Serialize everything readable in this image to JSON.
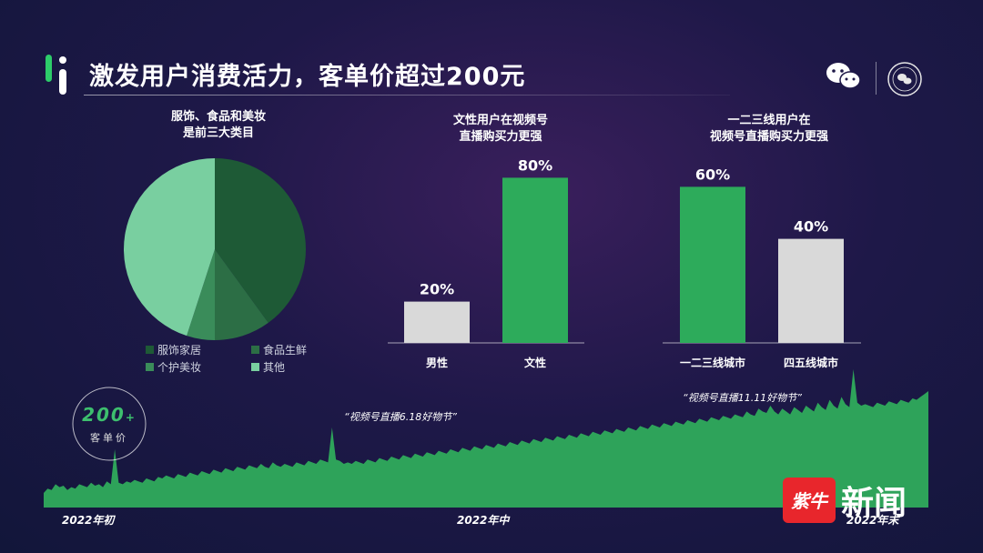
{
  "header": {
    "title": "激发用户消费活力，客单价超过200元"
  },
  "colors": {
    "green_dark": "#1e5a36",
    "green_mid": "#2f7a4b",
    "green_light": "#79cfa0",
    "green_bar": "#2dab5b",
    "gray_bar": "#d9d9d9",
    "area_fill": "#2ea35a"
  },
  "icons": {
    "wechat": "wechat-icon",
    "seal": "seal-icon",
    "logo": "brand-logo-icon"
  },
  "chart_data": [
    {
      "type": "pie",
      "title": "服饰、食品和美妆\n是前三大类目",
      "slices": [
        {
          "name": "服饰家居",
          "value": 40,
          "color": "#1e5a36"
        },
        {
          "name": "食品生鲜",
          "value": 10,
          "color": "#2c6e45"
        },
        {
          "name": "个护美妆",
          "value": 5,
          "color": "#3a8c5a"
        },
        {
          "name": "其他",
          "value": 45,
          "color": "#79cfa0"
        }
      ],
      "legend": [
        "服饰家居",
        "食品生鲜",
        "个护美妆",
        "其他"
      ],
      "legend_placement": "bottom"
    },
    {
      "type": "bar",
      "title": "文性用户在视频号\n直播购买力更强",
      "categories": [
        "男性",
        "文性"
      ],
      "values": [
        20,
        80
      ],
      "value_labels": [
        "20%",
        "80%"
      ],
      "colors": [
        "#d9d9d9",
        "#2dab5b"
      ],
      "ylim": [
        0,
        100
      ]
    },
    {
      "type": "bar",
      "title": "一二三线用户在\n视频号直播购买力更强",
      "categories": [
        "一二三线城市",
        "四五线城市"
      ],
      "values": [
        60,
        40
      ],
      "value_labels": [
        "60%",
        "40%"
      ],
      "colors": [
        "#2dab5b",
        "#d9d9d9"
      ],
      "ylim": [
        0,
        100
      ]
    },
    {
      "type": "area",
      "x_tick_labels": [
        "2022年初",
        "2022年中",
        "2022年末"
      ],
      "values": [
        10,
        13,
        12,
        16,
        14,
        15,
        12,
        14,
        13,
        16,
        15,
        14,
        17,
        15,
        16,
        14,
        18,
        16,
        40,
        17,
        16,
        18,
        17,
        19,
        18,
        17,
        20,
        19,
        18,
        21,
        20,
        22,
        21,
        20,
        23,
        22,
        21,
        24,
        23,
        22,
        25,
        24,
        23,
        26,
        25,
        24,
        27,
        26,
        25,
        28,
        27,
        26,
        29,
        28,
        27,
        30,
        28,
        27,
        31,
        29,
        28,
        30,
        29,
        28,
        31,
        30,
        29,
        32,
        31,
        30,
        33,
        32,
        31,
        55,
        33,
        32,
        30,
        31,
        30,
        32,
        31,
        30,
        33,
        32,
        31,
        34,
        33,
        32,
        35,
        34,
        33,
        36,
        35,
        34,
        37,
        36,
        35,
        38,
        37,
        36,
        39,
        38,
        37,
        40,
        39,
        38,
        41,
        40,
        39,
        42,
        41,
        40,
        43,
        42,
        41,
        44,
        43,
        42,
        45,
        44,
        43,
        46,
        45,
        44,
        47,
        46,
        45,
        48,
        47,
        46,
        49,
        48,
        47,
        50,
        49,
        48,
        51,
        50,
        49,
        52,
        51,
        50,
        53,
        52,
        51,
        54,
        53,
        52,
        55,
        54,
        53,
        56,
        55,
        54,
        57,
        56,
        55,
        58,
        57,
        56,
        59,
        58,
        57,
        60,
        59,
        58,
        61,
        60,
        59,
        62,
        61,
        60,
        63,
        62,
        61,
        64,
        63,
        62,
        66,
        64,
        63,
        68,
        66,
        65,
        70,
        66,
        64,
        68,
        66,
        64,
        69,
        67,
        65,
        70,
        68,
        66,
        72,
        69,
        67,
        74,
        70,
        68,
        76,
        71,
        69,
        95,
        72,
        70,
        71,
        70,
        69,
        72,
        71,
        70,
        73,
        72,
        71,
        74,
        73,
        72,
        75,
        74,
        76,
        78,
        80
      ],
      "annotations": [
        {
          "text": "“视频号直播6.18好物节”"
        },
        {
          "text": "“视频号直播11.11好物节”"
        }
      ],
      "ylim": [
        0,
        100
      ]
    }
  ],
  "stat": {
    "value": "200",
    "unit_mark": "+",
    "label": "客单价"
  },
  "watermark": {
    "badge_text": "紫牛",
    "text": "新闻"
  }
}
